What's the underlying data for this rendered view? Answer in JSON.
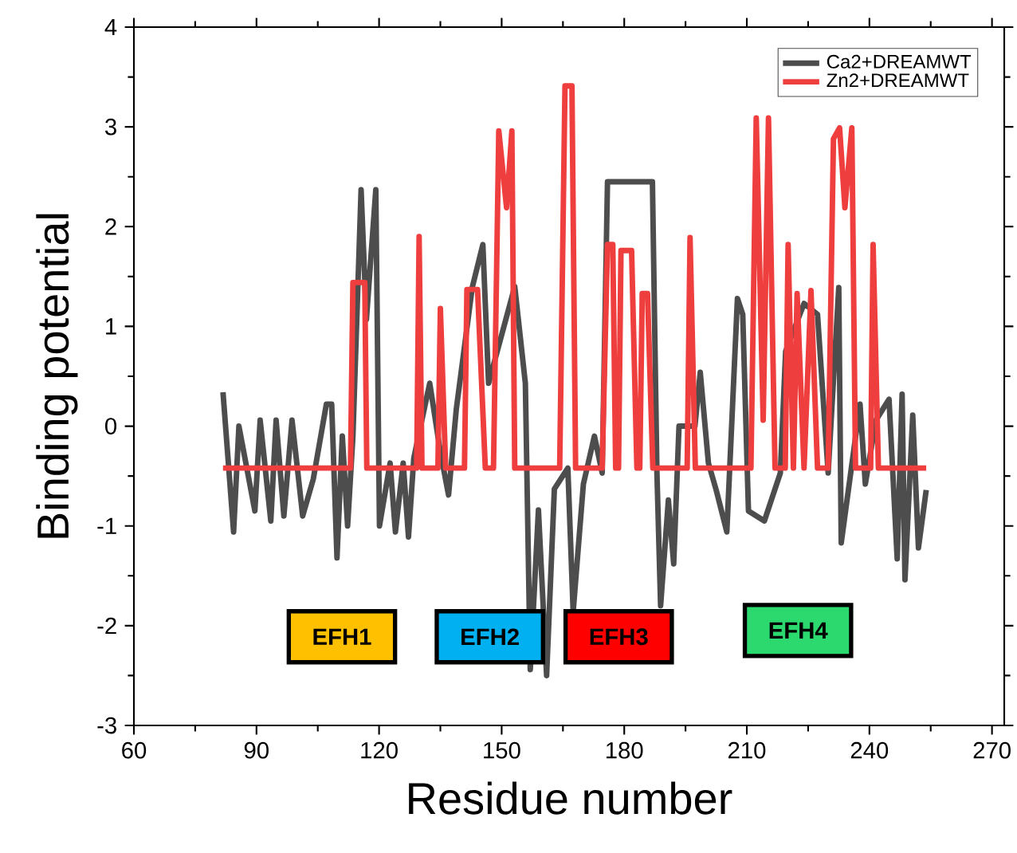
{
  "chart_data": {
    "type": "line",
    "xlabel": "Residue number",
    "ylabel": "Binding potential",
    "xlim": [
      60,
      273
    ],
    "ylim": [
      -3,
      4
    ],
    "xticks": [
      60,
      90,
      120,
      150,
      180,
      210,
      240,
      270
    ],
    "yticks": [
      -3,
      -2,
      -1,
      0,
      1,
      2,
      3,
      4
    ],
    "legend": "top right",
    "grid": false,
    "marker": "none",
    "line_style": "solid",
    "series": [
      {
        "name": "Ca2+DREAMWT",
        "color": "#4d4d4d",
        "x": [
          81.8,
          84.4,
          85.7,
          89.6,
          90.9,
          93.5,
          94.8,
          96.7,
          98.7,
          101.3,
          103.9,
          107.1,
          108.4,
          109.7,
          111,
          112.3,
          113.6,
          115.6,
          116.9,
          119.2,
          120.1,
          122.7,
          124,
          125.9,
          127.2,
          128.5,
          132.4,
          135,
          137,
          138.9,
          142.8,
          145.4,
          146.8,
          153.2,
          155.8,
          157,
          159,
          161,
          162.9,
          166.2,
          167.5,
          170,
          172.7,
          174.6,
          175.9,
          183,
          186.9,
          188,
          188.9,
          190.8,
          192.1,
          193.4,
          197.3,
          198.6,
          200.6,
          202.5,
          205.1,
          207.7,
          209,
          210.4,
          214.3,
          218.2,
          219.5,
          224,
          227.3,
          229.9,
          232.5,
          233.1,
          237.7,
          239,
          241.6,
          244.8,
          246.8,
          248,
          248.7,
          250.6,
          252,
          253.9
        ],
        "values": [
          0.34,
          -1.06,
          0.0,
          -0.85,
          0.06,
          -0.95,
          0.06,
          -0.9,
          0.06,
          -0.9,
          -0.53,
          0.22,
          0.22,
          -1.32,
          -0.1,
          -1.0,
          -0.1,
          2.37,
          1.07,
          2.37,
          -1.0,
          -0.37,
          -1.06,
          -0.37,
          -1.11,
          -0.32,
          0.43,
          -0.26,
          -0.69,
          0.17,
          1.39,
          1.82,
          0.43,
          1.4,
          0.43,
          -2.44,
          -0.84,
          -2.5,
          -0.63,
          -0.42,
          -1.86,
          -0.58,
          -0.1,
          -0.47,
          2.45,
          2.45,
          2.45,
          -0.47,
          -1.8,
          -0.74,
          -1.38,
          0.0,
          0.0,
          0.54,
          -0.37,
          -0.64,
          -1.06,
          1.28,
          1.12,
          -0.85,
          -0.95,
          -0.47,
          0.75,
          1.23,
          1.12,
          -0.47,
          1.39,
          -1.17,
          0.22,
          -0.58,
          0.06,
          0.27,
          -1.33,
          0.32,
          -1.54,
          0.11,
          -1.22,
          -0.64
        ]
      },
      {
        "name": "Zn2+DREAMWT",
        "color": "#ef3e3e",
        "x": [
          81.8,
          113.0,
          113.6,
          116.5,
          117,
          129.2,
          129.8,
          130.5,
          134.4,
          135,
          136.3,
          140.9,
          141.5,
          144.1,
          146,
          148,
          149.3,
          151.2,
          152.5,
          153.2,
          164.2,
          165.5,
          167.2,
          168.1,
          174.6,
          175.9,
          177.2,
          177.9,
          178.6,
          179.2,
          181.8,
          183.1,
          183.8,
          184.4,
          185.7,
          187,
          195.4,
          196.1,
          197.4,
          211,
          212.3,
          214,
          215.3,
          216.9,
          219.4,
          220.1,
          221.4,
          222.3,
          224,
          225.7,
          227.3,
          229.9,
          231.2,
          232.7,
          234,
          235.7,
          236.6,
          240.3,
          240.9,
          242.2,
          253.9
        ],
        "values": [
          -0.42,
          -0.42,
          1.44,
          1.44,
          -0.42,
          -0.42,
          1.9,
          -0.42,
          -0.42,
          1.18,
          -0.42,
          -0.42,
          1.37,
          1.37,
          -0.42,
          -0.42,
          2.96,
          2.19,
          2.96,
          -0.42,
          -0.42,
          3.41,
          3.41,
          -0.42,
          -0.42,
          1.82,
          1.82,
          -0.42,
          -0.42,
          1.76,
          1.76,
          -0.42,
          -0.42,
          1.33,
          1.33,
          -0.42,
          -0.42,
          1.89,
          -0.42,
          -0.42,
          3.09,
          0.06,
          3.09,
          -0.42,
          -0.42,
          1.82,
          -0.42,
          1.33,
          -0.42,
          1.36,
          -0.42,
          -0.42,
          2.88,
          2.99,
          2.19,
          2.99,
          -0.42,
          -0.42,
          1.82,
          -0.42,
          -0.42
        ]
      }
    ],
    "annotations": [
      "EFH1",
      "EFH2",
      "EFH3",
      "EFH4"
    ]
  }
}
